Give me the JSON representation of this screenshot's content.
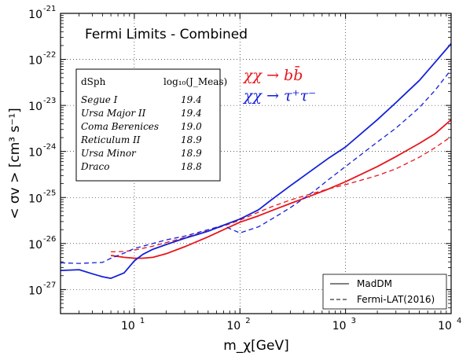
{
  "chart_data": {
    "type": "line",
    "title": "Fermi Limits - Combined",
    "xlabel": "m_χ[GeV]",
    "ylabel": "< σv > [cm³ s⁻¹]",
    "xscale": "log",
    "yscale": "log",
    "xlim": [
      2,
      10000
    ],
    "ylim": [
      3e-28,
      1e-21
    ],
    "grid": true,
    "x_ticks": [
      {
        "value": 10,
        "base": "10",
        "exp": "1"
      },
      {
        "value": 100,
        "base": "10",
        "exp": "2"
      },
      {
        "value": 1000,
        "base": "10",
        "exp": "3"
      },
      {
        "value": 10000,
        "base": "10",
        "exp": "4"
      }
    ],
    "y_ticks": [
      {
        "value": 1e-27,
        "base": "10",
        "exp": "-27"
      },
      {
        "value": 1e-26,
        "base": "10",
        "exp": "-26"
      },
      {
        "value": 1e-25,
        "base": "10",
        "exp": "-25"
      },
      {
        "value": 1e-24,
        "base": "10",
        "exp": "-24"
      },
      {
        "value": 1e-23,
        "base": "10",
        "exp": "-23"
      },
      {
        "value": 1e-22,
        "base": "10",
        "exp": "-22"
      },
      {
        "value": 1e-21,
        "base": "10",
        "exp": "-21"
      }
    ],
    "process_labels": [
      {
        "text": "χχ → bb̄",
        "color": "#e8141b"
      },
      {
        "text": "χχ → τ⁺τ⁻",
        "color": "#1420d8"
      }
    ],
    "legend": {
      "position": "bottom-right",
      "entries": [
        {
          "label": "MadDM",
          "style": "solid"
        },
        {
          "label": "Fermi-LAT(2016)",
          "style": "dashed"
        }
      ]
    },
    "table": {
      "headers": [
        "dSph",
        "log₁₀(J_Meas)"
      ],
      "rows": [
        [
          "Segue I",
          "19.4"
        ],
        [
          "Ursa Major II",
          "19.4"
        ],
        [
          "Coma Berenices",
          "19.0"
        ],
        [
          "Reticulum II",
          "18.9"
        ],
        [
          "Ursa Minor",
          "18.9"
        ],
        [
          "Draco",
          "18.8"
        ]
      ]
    },
    "series": [
      {
        "channel": "χχ → bb̄",
        "source": "MadDM",
        "color": "#e8141b",
        "style": "solid",
        "x": [
          6,
          8,
          10,
          12,
          15,
          20,
          30,
          50,
          70,
          100,
          150,
          200,
          300,
          500,
          700,
          1000,
          2000,
          3000,
          5000,
          7000,
          10000
        ],
        "y": [
          5.5e-27,
          5e-27,
          4.8e-27,
          4.8e-27,
          5e-27,
          6e-27,
          8.5e-27,
          1.4e-26,
          2e-26,
          2.9e-26,
          4e-26,
          5.2e-26,
          7.4e-26,
          1.15e-25,
          1.55e-25,
          2.2e-25,
          4.7e-25,
          7.7e-25,
          1.5e-24,
          2.4e-24,
          4.9e-24
        ]
      },
      {
        "channel": "χχ → bb̄",
        "source": "Fermi-LAT(2016)",
        "color": "#e8141b",
        "style": "dashed",
        "x": [
          6,
          8,
          10,
          15,
          20,
          30,
          50,
          70,
          100,
          150,
          200,
          300,
          500,
          700,
          1000,
          2000,
          3000,
          5000,
          7000,
          10000
        ],
        "y": [
          6.6e-27,
          6.7e-27,
          7.2e-27,
          8.8e-27,
          1.05e-26,
          1.35e-26,
          1.9e-26,
          2.4e-26,
          3.2e-26,
          4.8e-26,
          6.3e-26,
          8.8e-26,
          1.25e-25,
          1.55e-25,
          1.9e-25,
          3e-25,
          4.2e-25,
          7.5e-25,
          1.2e-24,
          2.1e-24
        ]
      },
      {
        "channel": "χχ → τ⁺τ⁻",
        "source": "MadDM",
        "color": "#1420d8",
        "style": "solid",
        "x": [
          2,
          3,
          4,
          5,
          6,
          8,
          10,
          12,
          15,
          20,
          30,
          50,
          70,
          100,
          150,
          200,
          300,
          500,
          700,
          1000,
          2000,
          3000,
          5000,
          7000,
          10000
        ],
        "y": [
          2.6e-27,
          2.7e-27,
          2.2e-27,
          1.9e-27,
          1.75e-27,
          2.3e-27,
          4.2e-27,
          5.8e-27,
          7.5e-27,
          9.5e-27,
          1.3e-26,
          1.85e-26,
          2.5e-26,
          3.4e-26,
          5.4e-26,
          9e-26,
          1.8e-25,
          4.2e-25,
          7.3e-25,
          1.25e-24,
          4.9e-24,
          1.15e-23,
          3.5e-23,
          8.5e-23,
          2.2e-22
        ]
      },
      {
        "channel": "χχ → τ⁺τ⁻",
        "source": "Fermi-LAT(2016)",
        "color": "#1420d8",
        "style": "dashed",
        "x": [
          2,
          3,
          5,
          6,
          8,
          10,
          15,
          20,
          30,
          50,
          70,
          80,
          100,
          150,
          200,
          300,
          500,
          700,
          1000,
          2000,
          3000,
          5000,
          7000,
          10000
        ],
        "y": [
          3.8e-27,
          3.7e-27,
          3.9e-27,
          4.8e-27,
          6.2e-27,
          7.8e-27,
          1e-26,
          1.2e-26,
          1.45e-26,
          2e-26,
          2.5e-26,
          2.1e-26,
          1.7e-26,
          2.3e-26,
          3.4e-26,
          6e-26,
          1.35e-25,
          2.5e-25,
          4.7e-25,
          1.6e-24,
          3.2e-24,
          9e-24,
          2.1e-23,
          6e-23
        ]
      }
    ]
  }
}
